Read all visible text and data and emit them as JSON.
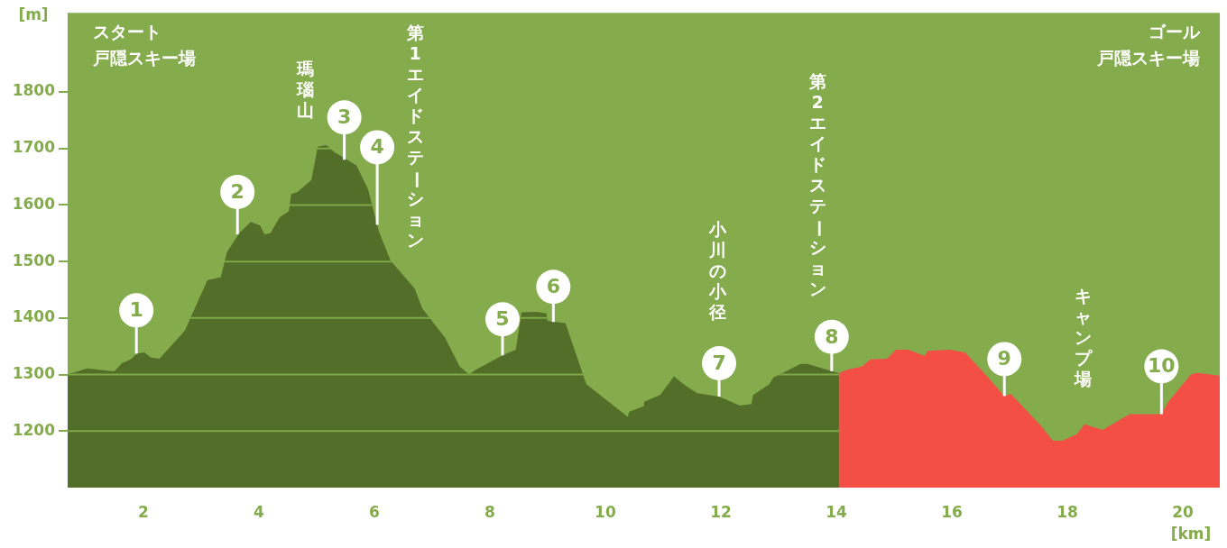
{
  "chart_data": {
    "type": "area",
    "xlabel": "[km]",
    "ylabel": "[m]",
    "xlim": [
      0.69,
      20.64
    ],
    "xticks": [
      2,
      4,
      6,
      8,
      10,
      12,
      14,
      16,
      18,
      20
    ],
    "ylim": [
      1100,
      1940
    ],
    "yticks": [
      1200,
      1300,
      1400,
      1500,
      1600,
      1700,
      1800
    ],
    "grid": "y",
    "legend": false,
    "series": [
      {
        "color": "#536e28",
        "x": [
          0.69,
          1.03,
          1.44,
          1.5,
          1.63,
          1.78,
          1.89,
          2.02,
          2.13,
          2.28,
          2.72,
          3.11,
          3.34,
          3.45,
          3.66,
          3.86,
          4.02,
          4.1,
          4.2,
          4.36,
          4.52,
          4.56,
          4.67,
          4.91,
          5.02,
          5.17,
          5.3,
          5.69,
          5.89,
          6.08,
          6.28,
          6.7,
          6.83,
          7.22,
          7.48,
          7.64,
          7.75,
          8.22,
          8.45,
          8.55,
          8.81,
          8.98,
          9.0,
          9.31,
          9.67,
          10.39,
          10.41,
          10.66,
          10.67,
          10.95,
          11.19,
          11.34,
          11.59,
          11.97,
          12.33,
          12.53,
          12.56,
          12.84,
          12.91,
          13.06,
          13.38,
          13.5,
          14.05
        ],
        "values": [
          1300,
          1311,
          1306,
          1306,
          1320,
          1327,
          1337,
          1339,
          1330,
          1328,
          1378,
          1467,
          1472,
          1517,
          1550,
          1570,
          1564,
          1548,
          1550,
          1578,
          1589,
          1619,
          1623,
          1644,
          1703,
          1706,
          1694,
          1670,
          1628,
          1553,
          1502,
          1452,
          1417,
          1366,
          1314,
          1300,
          1308,
          1334,
          1344,
          1410,
          1411,
          1408,
          1395,
          1391,
          1283,
          1225,
          1234,
          1244,
          1252,
          1264,
          1297,
          1284,
          1267,
          1261,
          1245,
          1248,
          1264,
          1283,
          1295,
          1302,
          1319,
          1319,
          1302
        ]
      },
      {
        "color": "#f44f45",
        "x": [
          14.05,
          14.2,
          14.44,
          14.59,
          14.88,
          15.03,
          15.25,
          15.53,
          15.58,
          15.97,
          16.23,
          16.6,
          16.91,
          17.02,
          17.52,
          17.75,
          17.91,
          18.16,
          18.3,
          18.61,
          19.08,
          19.63,
          19.75,
          20.14,
          20.25,
          20.64
        ],
        "values": [
          1303,
          1309,
          1314,
          1327,
          1328,
          1344,
          1344,
          1333,
          1342,
          1344,
          1339,
          1298,
          1262,
          1266,
          1212,
          1183,
          1183,
          1194,
          1212,
          1202,
          1230,
          1230,
          1252,
          1300,
          1303,
          1298
        ]
      }
    ],
    "annotations": [
      {
        "text": "1",
        "x": 1.88,
        "y": 1337
      },
      {
        "text": "2",
        "x": 3.63,
        "y": 1548
      },
      {
        "text": "3",
        "x": 5.48,
        "y": 1680
      },
      {
        "text": "4",
        "x": 6.05,
        "y": 1565
      },
      {
        "text": "5",
        "x": 8.22,
        "y": 1334
      },
      {
        "text": "6",
        "x": 9.1,
        "y": 1393
      },
      {
        "text": "7",
        "x": 11.97,
        "y": 1261
      },
      {
        "text": "8",
        "x": 13.92,
        "y": 1306
      },
      {
        "text": "9",
        "x": 16.91,
        "y": 1262
      },
      {
        "text": "10",
        "x": 19.63,
        "y": 1230
      },
      "スタート",
      "戸隠スキー場",
      "瑪瑙山",
      "第1エイドステーション",
      "小川の小径",
      "第2エイドステーション",
      "キャンプ場",
      "ゴール",
      "戸隠スキー場"
    ]
  }
}
